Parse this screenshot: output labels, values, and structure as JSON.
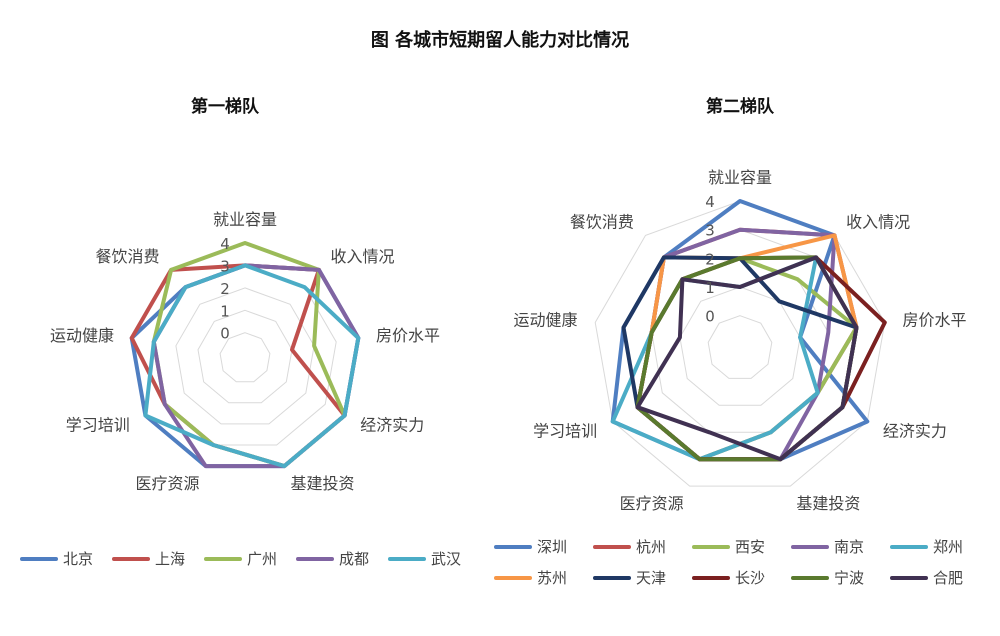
{
  "title": "图  各城市短期留人能力对比情况",
  "chart_data": [
    {
      "type": "radar",
      "title": "第一梯队",
      "axes": [
        "就业容量",
        "收入情况",
        "房价水平",
        "经济实力",
        "基建投资",
        "医疗资源",
        "学习培训",
        "运动健康",
        "餐饮消费"
      ],
      "rlim": [
        0,
        4
      ],
      "ticks": [
        "0",
        "1",
        "2",
        "3",
        "4"
      ],
      "legend_position": "bottom",
      "series": [
        {
          "name": "北京",
          "color": "#4f7ec1",
          "values": [
            3,
            4,
            4,
            4,
            4,
            4,
            4,
            4,
            3
          ]
        },
        {
          "name": "上海",
          "color": "#c0504d",
          "values": [
            3,
            4,
            1,
            4,
            4,
            3,
            3,
            4,
            4
          ]
        },
        {
          "name": "广州",
          "color": "#9bbb59",
          "values": [
            4,
            4,
            2,
            4,
            4,
            3,
            3,
            3,
            4
          ]
        },
        {
          "name": "成都",
          "color": "#8064a2",
          "values": [
            3,
            4,
            4,
            4,
            4,
            4,
            3,
            3,
            3
          ]
        },
        {
          "name": "武汉",
          "color": "#4bacc6",
          "values": [
            3,
            3,
            4,
            4,
            4,
            3,
            4,
            3,
            3
          ]
        }
      ]
    },
    {
      "type": "radar",
      "title": "第二梯队",
      "axes": [
        "就业容量",
        "收入情况",
        "房价水平",
        "经济实力",
        "基建投资",
        "医疗资源",
        "学习培训",
        "运动健康",
        "餐饮消费"
      ],
      "rlim": [
        0,
        4
      ],
      "ticks": [
        "0",
        "1",
        "2",
        "3",
        "4"
      ],
      "legend_position": "bottom",
      "series": [
        {
          "name": "深圳",
          "color": "#4f7ec1",
          "values": [
            4,
            4,
            1,
            4,
            3,
            3,
            4,
            3,
            3
          ]
        },
        {
          "name": "杭州",
          "color": "#c0504d",
          "values": [
            3,
            4,
            3,
            2,
            2,
            3,
            3,
            2,
            3
          ]
        },
        {
          "name": "西安",
          "color": "#9bbb59",
          "values": [
            2,
            2,
            3,
            2,
            2,
            3,
            3,
            2,
            2
          ]
        },
        {
          "name": "南京",
          "color": "#8064a2",
          "values": [
            3,
            4,
            2,
            2,
            3,
            3,
            3,
            2,
            3
          ]
        },
        {
          "name": "郑州",
          "color": "#4bacc6",
          "values": [
            1,
            3,
            1,
            2,
            2,
            3,
            4,
            2,
            2
          ]
        },
        {
          "name": "苏州",
          "color": "#f79646",
          "values": [
            2,
            4,
            3,
            3,
            3,
            3,
            3,
            2,
            3
          ]
        },
        {
          "name": "天津",
          "color": "#1f3864",
          "values": [
            2,
            1,
            3,
            3,
            3,
            3,
            3,
            3,
            3
          ]
        },
        {
          "name": "长沙",
          "color": "#7b2020",
          "values": [
            2,
            3,
            4,
            3,
            3,
            3,
            3,
            2,
            2
          ]
        },
        {
          "name": "宁波",
          "color": "#5a7a2e",
          "values": [
            2,
            3,
            3,
            3,
            3,
            3,
            3,
            2,
            2
          ]
        },
        {
          "name": "合肥",
          "color": "#403152",
          "values": [
            1,
            3,
            3,
            3,
            3,
            2,
            3,
            1,
            2
          ]
        }
      ]
    }
  ]
}
